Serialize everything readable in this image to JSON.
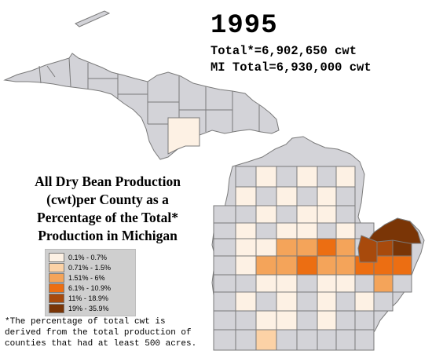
{
  "year": "1995",
  "total_line": "Total*=6,902,650 cwt",
  "mi_total_line": "MI Total=6,930,000 cwt",
  "title_lines": [
    "All Dry Bean Production",
    "(cwt)per County as a",
    "Percentage of the Total*",
    "Production in Michigan"
  ],
  "legend": [
    {
      "label": "0.1% - 0.7%",
      "color": "#fdf1e4"
    },
    {
      "label": "0.71% - 1.5%",
      "color": "#fcd2a6"
    },
    {
      "label": "1.51% - 6%",
      "color": "#f4a45a"
    },
    {
      "label": "6.1% - 10.9%",
      "color": "#ec6e12"
    },
    {
      "label": "11% - 18.9%",
      "color": "#a84a0c"
    },
    {
      "label": "19% - 35.9%",
      "color": "#7a3506"
    }
  ],
  "footnote_lines": [
    "*The percentage of total cwt is",
    "derived from the total production of",
    "counties that had at least 500 acres."
  ],
  "colors": {
    "no_data": "#d3d3d8",
    "border": "#7a7a7a",
    "background": "#ffffff"
  }
}
